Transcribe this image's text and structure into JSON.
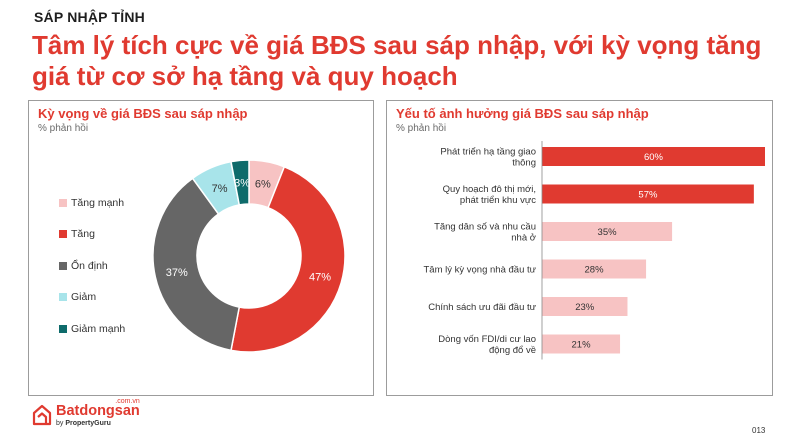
{
  "header": {
    "kicker": "SÁP NHẬP TỈNH",
    "headline": "Tâm lý tích cực về giá BĐS sau sáp nhập, với kỳ vọng tăng giá từ cơ sở hạ tầng và quy hoạch"
  },
  "left_panel": {
    "title": "Kỳ vọng về giá BĐS sau sáp nhập",
    "subtitle": "% phản hồi"
  },
  "right_panel": {
    "title": "Yếu tố ảnh hưởng giá BĐS sau sáp nhập",
    "subtitle": "% phản hồi"
  },
  "chart_data": [
    {
      "type": "pie",
      "title": "Kỳ vọng về giá BĐS sau sáp nhập",
      "subtitle": "% phản hồi",
      "style": "donut",
      "legend_position": "left",
      "slices": [
        {
          "label": "Tăng mạnh",
          "value": 6,
          "value_label": "6%",
          "color": "#f7c3c3",
          "label_color": "#333333"
        },
        {
          "label": "Tăng",
          "value": 47,
          "value_label": "47%",
          "color": "#e03a30",
          "label_color": "#ffffff"
        },
        {
          "label": "Ổn định",
          "value": 37,
          "value_label": "37%",
          "color": "#666666",
          "label_color": "#ffffff"
        },
        {
          "label": "Giảm",
          "value": 7,
          "value_label": "7%",
          "color": "#a8e4ea",
          "label_color": "#333333"
        },
        {
          "label": "Giảm mạnh",
          "value": 3,
          "value_label": "3%",
          "color": "#0e6b6b",
          "label_color": "#ffffff"
        }
      ]
    },
    {
      "type": "bar",
      "orientation": "horizontal",
      "title": "Yếu tố ảnh hưởng giá BĐS sau sáp nhập",
      "subtitle": "% phản hồi",
      "xlim": [
        0,
        60
      ],
      "grid": false,
      "categories": [
        [
          "Phát triển hạ tầng giao",
          "thông"
        ],
        [
          "Quy hoạch đô thị mới,",
          "phát triển khu vực"
        ],
        [
          "Tăng dân số và nhu cầu",
          "nhà ở"
        ],
        [
          "Tâm lý kỳ vọng nhà đầu tư"
        ],
        [
          "Chính sách ưu đãi đầu tư"
        ],
        [
          "Dòng vốn FDI/di cư lao",
          "động đổ về"
        ]
      ],
      "values": [
        60,
        57,
        35,
        28,
        23,
        21
      ],
      "value_labels": [
        "60%",
        "57%",
        "35%",
        "28%",
        "23%",
        "21%"
      ],
      "bar_colors": [
        "#e03a30",
        "#e03a30",
        "#f7c3c3",
        "#f7c3c3",
        "#f7c3c3",
        "#f7c3c3"
      ],
      "label_colors": [
        "#ffffff",
        "#ffffff",
        "#333333",
        "#333333",
        "#333333",
        "#333333"
      ]
    }
  ],
  "footer": {
    "brand": "Batdongsan",
    "tld": ".com.vn",
    "by_prefix": "by ",
    "by_brand": "PropertyGuru",
    "page_number": "013",
    "brand_color": "#e03a30"
  }
}
